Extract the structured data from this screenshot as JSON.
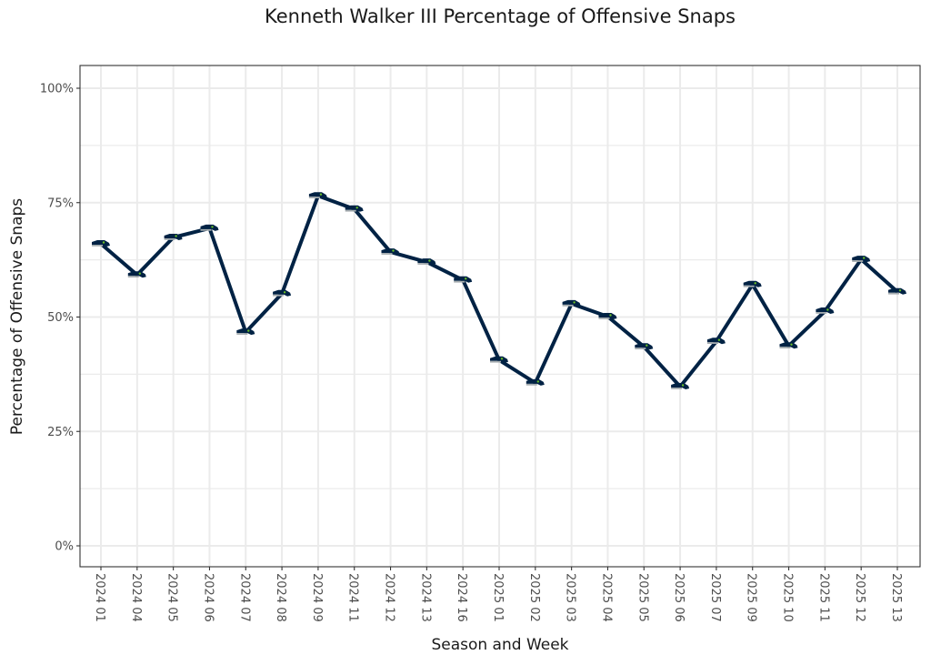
{
  "chart_data": {
    "type": "line",
    "title": "Kenneth Walker III Percentage of Offensive Snaps",
    "xlabel": "Season and Week",
    "ylabel": "Percentage of Offensive Snaps",
    "ylim": [
      0,
      1
    ],
    "yticks": [
      0,
      0.25,
      0.5,
      0.75,
      1.0
    ],
    "ytick_labels": [
      "0%",
      "25%",
      "50%",
      "75%",
      "100%"
    ],
    "grid": true,
    "legend": "none",
    "categories": [
      "2024 01",
      "2024 04",
      "2024 05",
      "2024 06",
      "2024 07",
      "2024 08",
      "2024 09",
      "2024 11",
      "2024 12",
      "2024 13",
      "2024 16",
      "2025 01",
      "2025 02",
      "2025 03",
      "2025 04",
      "2025 05",
      "2025 06",
      "2025 07",
      "2025 09",
      "2025 10",
      "2025 11",
      "2025 12",
      "2025 13"
    ],
    "series": [
      {
        "name": "Kenneth Walker III",
        "values": [
          0.66,
          0.592,
          0.674,
          0.694,
          0.467,
          0.551,
          0.765,
          0.736,
          0.642,
          0.62,
          0.581,
          0.406,
          0.356,
          0.529,
          0.501,
          0.435,
          0.348,
          0.447,
          0.571,
          0.437,
          0.513,
          0.626,
          0.555
        ]
      }
    ],
    "colors": {
      "line": "#002244",
      "marker": "#002244",
      "marker_accent": "#A5ACAF",
      "grid": "#ebebeb",
      "panel_border": "#333333"
    },
    "marker_icon": "seahawks-logo-icon"
  }
}
